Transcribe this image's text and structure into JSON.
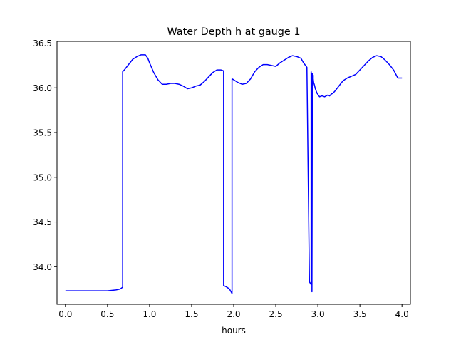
{
  "chart_data": {
    "type": "line",
    "title": "Water Depth h at gauge 1",
    "xlabel": "hours",
    "ylabel": "",
    "xlim": [
      -0.1,
      4.1
    ],
    "ylim": [
      33.58,
      36.52
    ],
    "xticks": [
      0.0,
      0.5,
      1.0,
      1.5,
      2.0,
      2.5,
      3.0,
      3.5,
      4.0
    ],
    "xtick_labels": [
      "0.0",
      "0.5",
      "1.0",
      "1.5",
      "2.0",
      "2.5",
      "3.0",
      "3.5",
      "4.0"
    ],
    "yticks": [
      34.0,
      34.5,
      35.0,
      35.5,
      36.0,
      36.5
    ],
    "ytick_labels": [
      "34.0",
      "34.5",
      "35.0",
      "35.5",
      "36.0",
      "36.5"
    ],
    "grid": false,
    "legend": "none",
    "series": [
      {
        "color": "#0000ff",
        "x": [
          0.0,
          0.2,
          0.4,
          0.5,
          0.6,
          0.65,
          0.68,
          0.68,
          0.7,
          0.75,
          0.8,
          0.85,
          0.9,
          0.95,
          0.98,
          1.0,
          1.05,
          1.1,
          1.15,
          1.2,
          1.25,
          1.3,
          1.35,
          1.4,
          1.45,
          1.5,
          1.55,
          1.6,
          1.65,
          1.7,
          1.75,
          1.8,
          1.85,
          1.88,
          1.88,
          1.92,
          1.95,
          1.98,
          1.98,
          2.0,
          2.05,
          2.1,
          2.15,
          2.2,
          2.25,
          2.3,
          2.35,
          2.4,
          2.45,
          2.5,
          2.55,
          2.6,
          2.65,
          2.7,
          2.75,
          2.8,
          2.83,
          2.87,
          2.9,
          2.92,
          2.92,
          2.93,
          2.93,
          2.935,
          2.945,
          2.945,
          2.95,
          2.96,
          2.97,
          2.99,
          3.02,
          3.05,
          3.08,
          3.1,
          3.12,
          3.14,
          3.16,
          3.18,
          3.2,
          3.25,
          3.3,
          3.35,
          3.4,
          3.45,
          3.5,
          3.55,
          3.6,
          3.65,
          3.7,
          3.75,
          3.8,
          3.85,
          3.9,
          3.95,
          4.0
        ],
        "y": [
          33.73,
          33.73,
          33.73,
          33.73,
          33.74,
          33.75,
          33.77,
          36.18,
          36.2,
          36.26,
          36.32,
          36.35,
          36.37,
          36.37,
          36.33,
          36.28,
          36.17,
          36.09,
          36.04,
          36.04,
          36.05,
          36.05,
          36.04,
          36.02,
          35.99,
          36.0,
          36.02,
          36.03,
          36.07,
          36.12,
          36.17,
          36.2,
          36.2,
          36.19,
          33.79,
          33.77,
          33.75,
          33.7,
          36.1,
          36.09,
          36.06,
          36.04,
          36.05,
          36.1,
          36.18,
          36.23,
          36.26,
          36.26,
          36.25,
          36.24,
          36.28,
          36.31,
          36.34,
          36.36,
          36.35,
          36.33,
          36.28,
          36.23,
          33.83,
          33.8,
          36.18,
          36.12,
          33.72,
          36.16,
          36.14,
          36.1,
          36.06,
          36.03,
          35.99,
          35.94,
          35.9,
          35.91,
          35.9,
          35.91,
          35.92,
          35.91,
          35.93,
          35.94,
          35.96,
          36.02,
          36.08,
          36.11,
          36.13,
          36.15,
          36.2,
          36.25,
          36.3,
          36.34,
          36.36,
          36.35,
          36.31,
          36.26,
          36.2,
          36.11,
          36.11
        ]
      }
    ]
  }
}
